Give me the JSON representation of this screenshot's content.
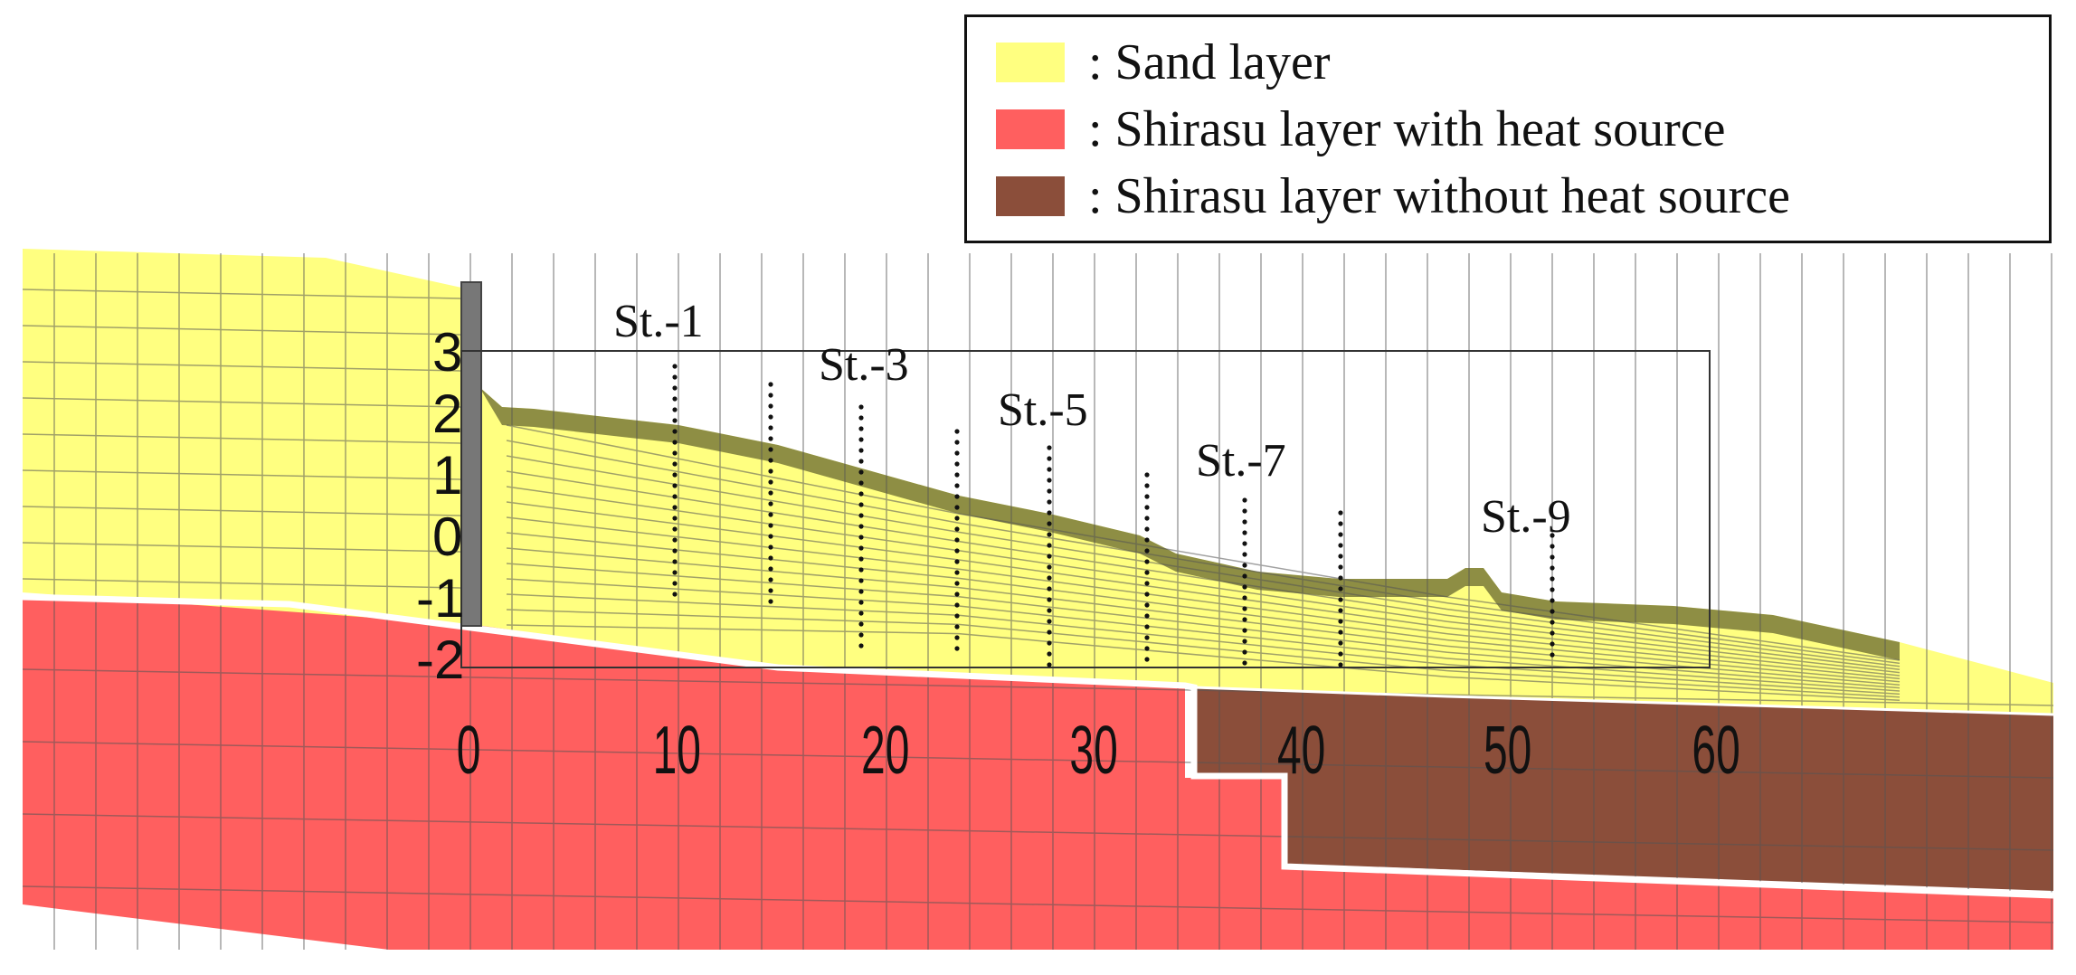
{
  "legend": {
    "items": [
      {
        "label": ": Sand layer",
        "color": "#ffff80"
      },
      {
        "label": ": Shirasu layer with heat source",
        "color": "#ff5f5f"
      },
      {
        "label": ": Shirasu layer without heat source",
        "color": "#8b4e3a"
      }
    ]
  },
  "stations": [
    "St.-1",
    "St.-3",
    "St.-5",
    "St.-7",
    "St.-9"
  ],
  "axis": {
    "x_ticks": [
      "0",
      "10",
      "20",
      "30",
      "40",
      "50",
      "60"
    ],
    "y_ticks": [
      "3",
      "2",
      "1",
      "0",
      "-1",
      "-2"
    ]
  },
  "colors": {
    "sand": "#ffff80",
    "shirasu_heat": "#ff5f5f",
    "shirasu_noheat": "#8b4e3a",
    "mesh_line": "#555555",
    "surface_dark": "#5a5a20"
  }
}
